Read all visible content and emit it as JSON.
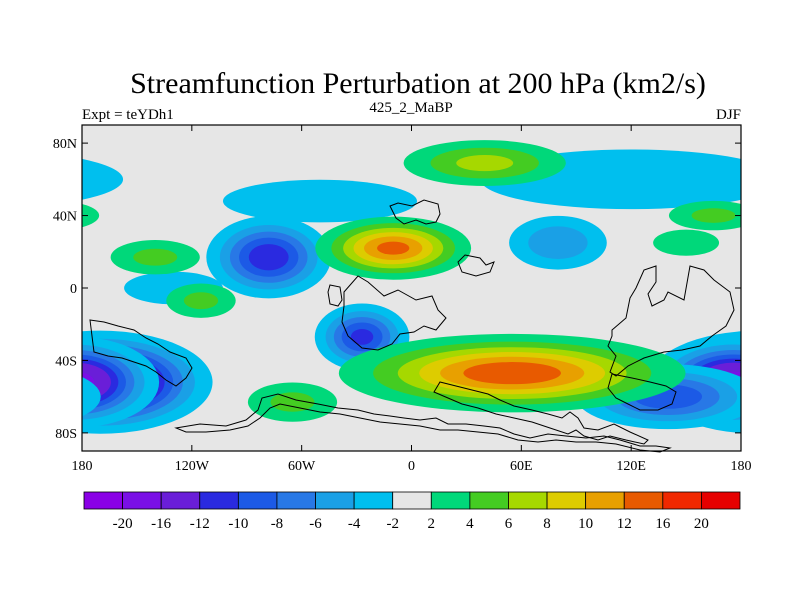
{
  "chart_data": {
    "type": "heatmap",
    "title": "Streamfunction Perturbation at 200 hPa (km2/s)",
    "left_label": "Expt = teYDh1",
    "center_label": "425_2_MaBP",
    "right_label": "DJF",
    "x_ticks": [
      {
        "value": -180,
        "label": "180"
      },
      {
        "value": -120,
        "label": "120W"
      },
      {
        "value": -60,
        "label": "60W"
      },
      {
        "value": 0,
        "label": "0"
      },
      {
        "value": 60,
        "label": "60E"
      },
      {
        "value": 120,
        "label": "120E"
      },
      {
        "value": 180,
        "label": "180"
      }
    ],
    "y_ticks": [
      {
        "value": 80,
        "label": "80N"
      },
      {
        "value": 40,
        "label": "40N"
      },
      {
        "value": 0,
        "label": "0"
      },
      {
        "value": -40,
        "label": "40S"
      },
      {
        "value": -80,
        "label": "80S"
      }
    ],
    "xlim": [
      -180,
      180
    ],
    "ylim": [
      -90,
      90
    ],
    "colorbar": {
      "levels": [
        "-20",
        "-16",
        "-12",
        "-10",
        "-8",
        "-6",
        "-4",
        "-2",
        "2",
        "4",
        "6",
        "8",
        "10",
        "12",
        "16",
        "20"
      ],
      "colors": [
        "#8a00e6",
        "#7a10e6",
        "#6a1ed8",
        "#2a2ae0",
        "#1c5ae6",
        "#2878e6",
        "#1aa0e6",
        "#00bfee",
        "#e6e6e6",
        "#00d87a",
        "#44cc22",
        "#a6d800",
        "#ddcc00",
        "#e8a000",
        "#e85a00",
        "#f02800",
        "#e60000"
      ]
    },
    "features": [
      {
        "lon": -78,
        "lat": 17,
        "value": -12,
        "sx": 18,
        "sy": 12,
        "name": "low-120w-n"
      },
      {
        "lon": -27,
        "lat": -27,
        "value": -11,
        "sx": 14,
        "sy": 10,
        "name": "low-30w-s"
      },
      {
        "lon": -170,
        "lat": -52,
        "value": -22,
        "sx": 28,
        "sy": 13,
        "name": "low-180-s"
      },
      {
        "lon": 176,
        "lat": -52,
        "value": -18,
        "sx": 22,
        "sy": 12,
        "name": "low-180e-s"
      },
      {
        "lon": 140,
        "lat": -60,
        "value": -10,
        "sx": 28,
        "sy": 10,
        "name": "low-120e-s"
      },
      {
        "lon": 80,
        "lat": 25,
        "value": -6,
        "sx": 18,
        "sy": 10,
        "name": "low-60e-n"
      },
      {
        "lon": -50,
        "lat": 48,
        "value": -4,
        "sx": 45,
        "sy": 10,
        "name": "low-na"
      },
      {
        "lon": 120,
        "lat": 60,
        "value": -4,
        "sx": 70,
        "sy": 14,
        "name": "low-asia"
      },
      {
        "lon": -130,
        "lat": 0,
        "value": -3,
        "sx": 30,
        "sy": 10,
        "name": "low-pac-eq"
      },
      {
        "lon": -10,
        "lat": 22,
        "value": 13,
        "sx": 22,
        "sy": 9,
        "name": "high-atl-n"
      },
      {
        "lon": 55,
        "lat": -47,
        "value": 14,
        "sx": 48,
        "sy": 11,
        "name": "high-io-s"
      },
      {
        "lon": 40,
        "lat": 69,
        "value": 7,
        "sx": 28,
        "sy": 8,
        "name": "high-arctic"
      },
      {
        "lon": -140,
        "lat": 17,
        "value": 5,
        "sx": 18,
        "sy": 7,
        "name": "high-pac-n"
      },
      {
        "lon": -115,
        "lat": -7,
        "value": 5,
        "sx": 14,
        "sy": 7,
        "name": "high-pac-s"
      },
      {
        "lon": -65,
        "lat": -63,
        "value": 5,
        "sx": 18,
        "sy": 8,
        "name": "high-sa-s"
      },
      {
        "lon": 165,
        "lat": 40,
        "value": 5,
        "sx": 18,
        "sy": 6,
        "name": "high-np"
      },
      {
        "lon": 150,
        "lat": 25,
        "value": 3,
        "sx": 20,
        "sy": 8,
        "name": "high-wp"
      }
    ]
  }
}
